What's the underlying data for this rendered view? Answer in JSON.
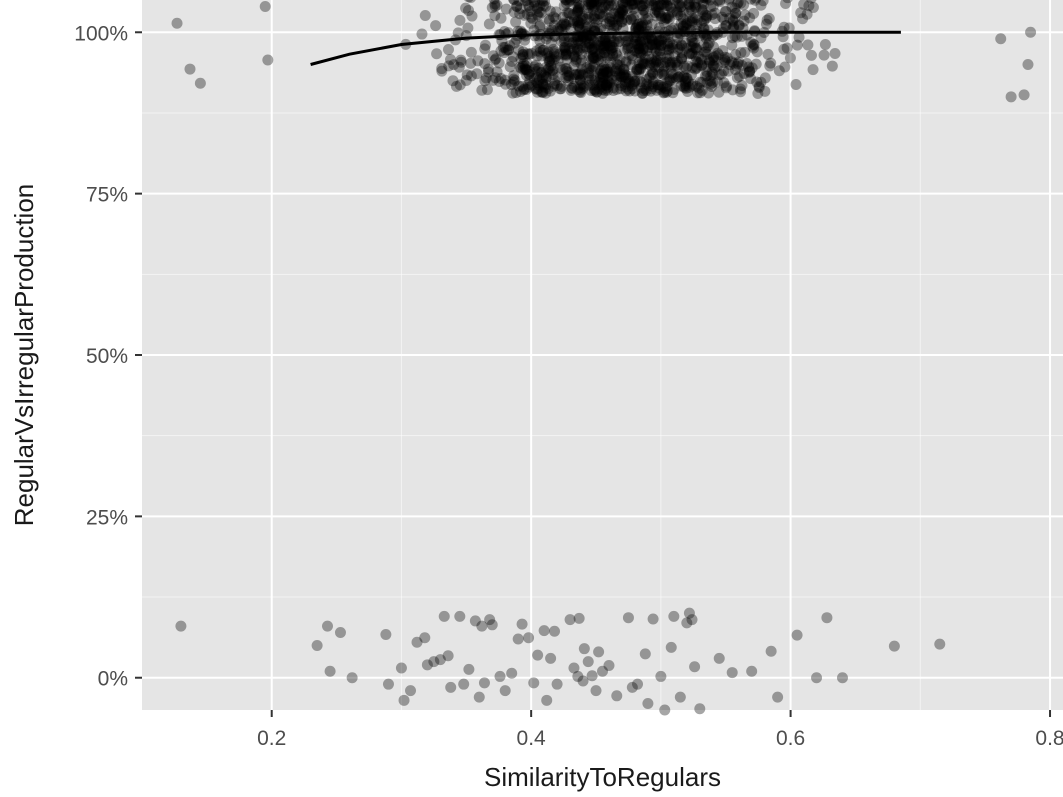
{
  "chart_data": {
    "type": "scatter",
    "title": "",
    "xlabel": "SimilarityToRegulars",
    "ylabel": "RegularVsIrregularProduction",
    "xlim": [
      0.1,
      0.81
    ],
    "ylim": [
      -0.05,
      1.05
    ],
    "x_ticks": [
      {
        "value": 0.2,
        "label": "0.2"
      },
      {
        "value": 0.4,
        "label": "0.4"
      },
      {
        "value": 0.6,
        "label": "0.6"
      },
      {
        "value": 0.8,
        "label": "0.8"
      }
    ],
    "y_ticks": [
      {
        "value": 0.0,
        "label": "0%"
      },
      {
        "value": 0.25,
        "label": "25%"
      },
      {
        "value": 0.5,
        "label": "50%"
      },
      {
        "value": 0.75,
        "label": "75%"
      },
      {
        "value": 1.0,
        "label": "100%"
      }
    ],
    "grid": true,
    "point_color": "#000000",
    "point_opacity": 0.35,
    "line_color": "#000000",
    "background": "#e5e5e5",
    "grid_color": "#ffffff",
    "points_low": [
      [
        0.13,
        0.08
      ],
      [
        0.235,
        0.05
      ],
      [
        0.243,
        0.08
      ],
      [
        0.245,
        0.01
      ],
      [
        0.253,
        0.07
      ],
      [
        0.262,
        0.0
      ],
      [
        0.288,
        0.067
      ],
      [
        0.29,
        -0.01
      ],
      [
        0.3,
        0.015
      ],
      [
        0.302,
        -0.035
      ],
      [
        0.307,
        -0.02
      ],
      [
        0.312,
        0.055
      ],
      [
        0.318,
        0.062
      ],
      [
        0.32,
        0.02
      ],
      [
        0.325,
        0.025
      ],
      [
        0.33,
        0.028
      ],
      [
        0.333,
        0.095
      ],
      [
        0.336,
        0.034
      ],
      [
        0.338,
        -0.015
      ],
      [
        0.345,
        0.095
      ],
      [
        0.348,
        -0.01
      ],
      [
        0.352,
        0.013
      ],
      [
        0.357,
        0.088
      ],
      [
        0.36,
        -0.03
      ],
      [
        0.362,
        0.08
      ],
      [
        0.364,
        -0.008
      ],
      [
        0.368,
        0.09
      ],
      [
        0.37,
        0.082
      ],
      [
        0.376,
        0.002
      ],
      [
        0.38,
        -0.02
      ],
      [
        0.385,
        0.007
      ],
      [
        0.39,
        0.06
      ],
      [
        0.393,
        0.083
      ],
      [
        0.398,
        0.062
      ],
      [
        0.402,
        -0.008
      ],
      [
        0.405,
        0.035
      ],
      [
        0.41,
        0.073
      ],
      [
        0.412,
        -0.035
      ],
      [
        0.415,
        0.03
      ],
      [
        0.418,
        0.072
      ],
      [
        0.42,
        -0.01
      ],
      [
        0.43,
        0.09
      ],
      [
        0.433,
        0.015
      ],
      [
        0.436,
        0.002
      ],
      [
        0.437,
        0.092
      ],
      [
        0.44,
        -0.005
      ],
      [
        0.441,
        0.045
      ],
      [
        0.444,
        0.025
      ],
      [
        0.447,
        0.003
      ],
      [
        0.45,
        -0.02
      ],
      [
        0.452,
        0.04
      ],
      [
        0.455,
        0.01
      ],
      [
        0.46,
        0.019
      ],
      [
        0.466,
        -0.028
      ],
      [
        0.475,
        0.093
      ],
      [
        0.478,
        -0.015
      ],
      [
        0.482,
        -0.01
      ],
      [
        0.488,
        0.037
      ],
      [
        0.49,
        -0.04
      ],
      [
        0.494,
        0.091
      ],
      [
        0.5,
        0.002
      ],
      [
        0.503,
        -0.05
      ],
      [
        0.508,
        0.047
      ],
      [
        0.51,
        0.095
      ],
      [
        0.515,
        -0.03
      ],
      [
        0.52,
        0.085
      ],
      [
        0.522,
        0.1
      ],
      [
        0.524,
        0.09
      ],
      [
        0.526,
        0.017
      ],
      [
        0.53,
        -0.048
      ],
      [
        0.545,
        0.03
      ],
      [
        0.555,
        0.008
      ],
      [
        0.57,
        0.01
      ],
      [
        0.585,
        0.041
      ],
      [
        0.59,
        -0.03
      ],
      [
        0.605,
        0.066
      ],
      [
        0.62,
        0.0
      ],
      [
        0.628,
        0.093
      ],
      [
        0.64,
        0.0
      ],
      [
        0.68,
        0.049
      ],
      [
        0.715,
        0.052
      ]
    ],
    "smooth": {
      "x": [
        0.23,
        0.26,
        0.3,
        0.35,
        0.4,
        0.45,
        0.5,
        0.55,
        0.6,
        0.65,
        0.685
      ],
      "y": [
        0.95,
        0.966,
        0.981,
        0.991,
        0.996,
        0.998,
        0.999,
        1.0,
        1.0,
        1.0,
        1.0
      ]
    }
  }
}
